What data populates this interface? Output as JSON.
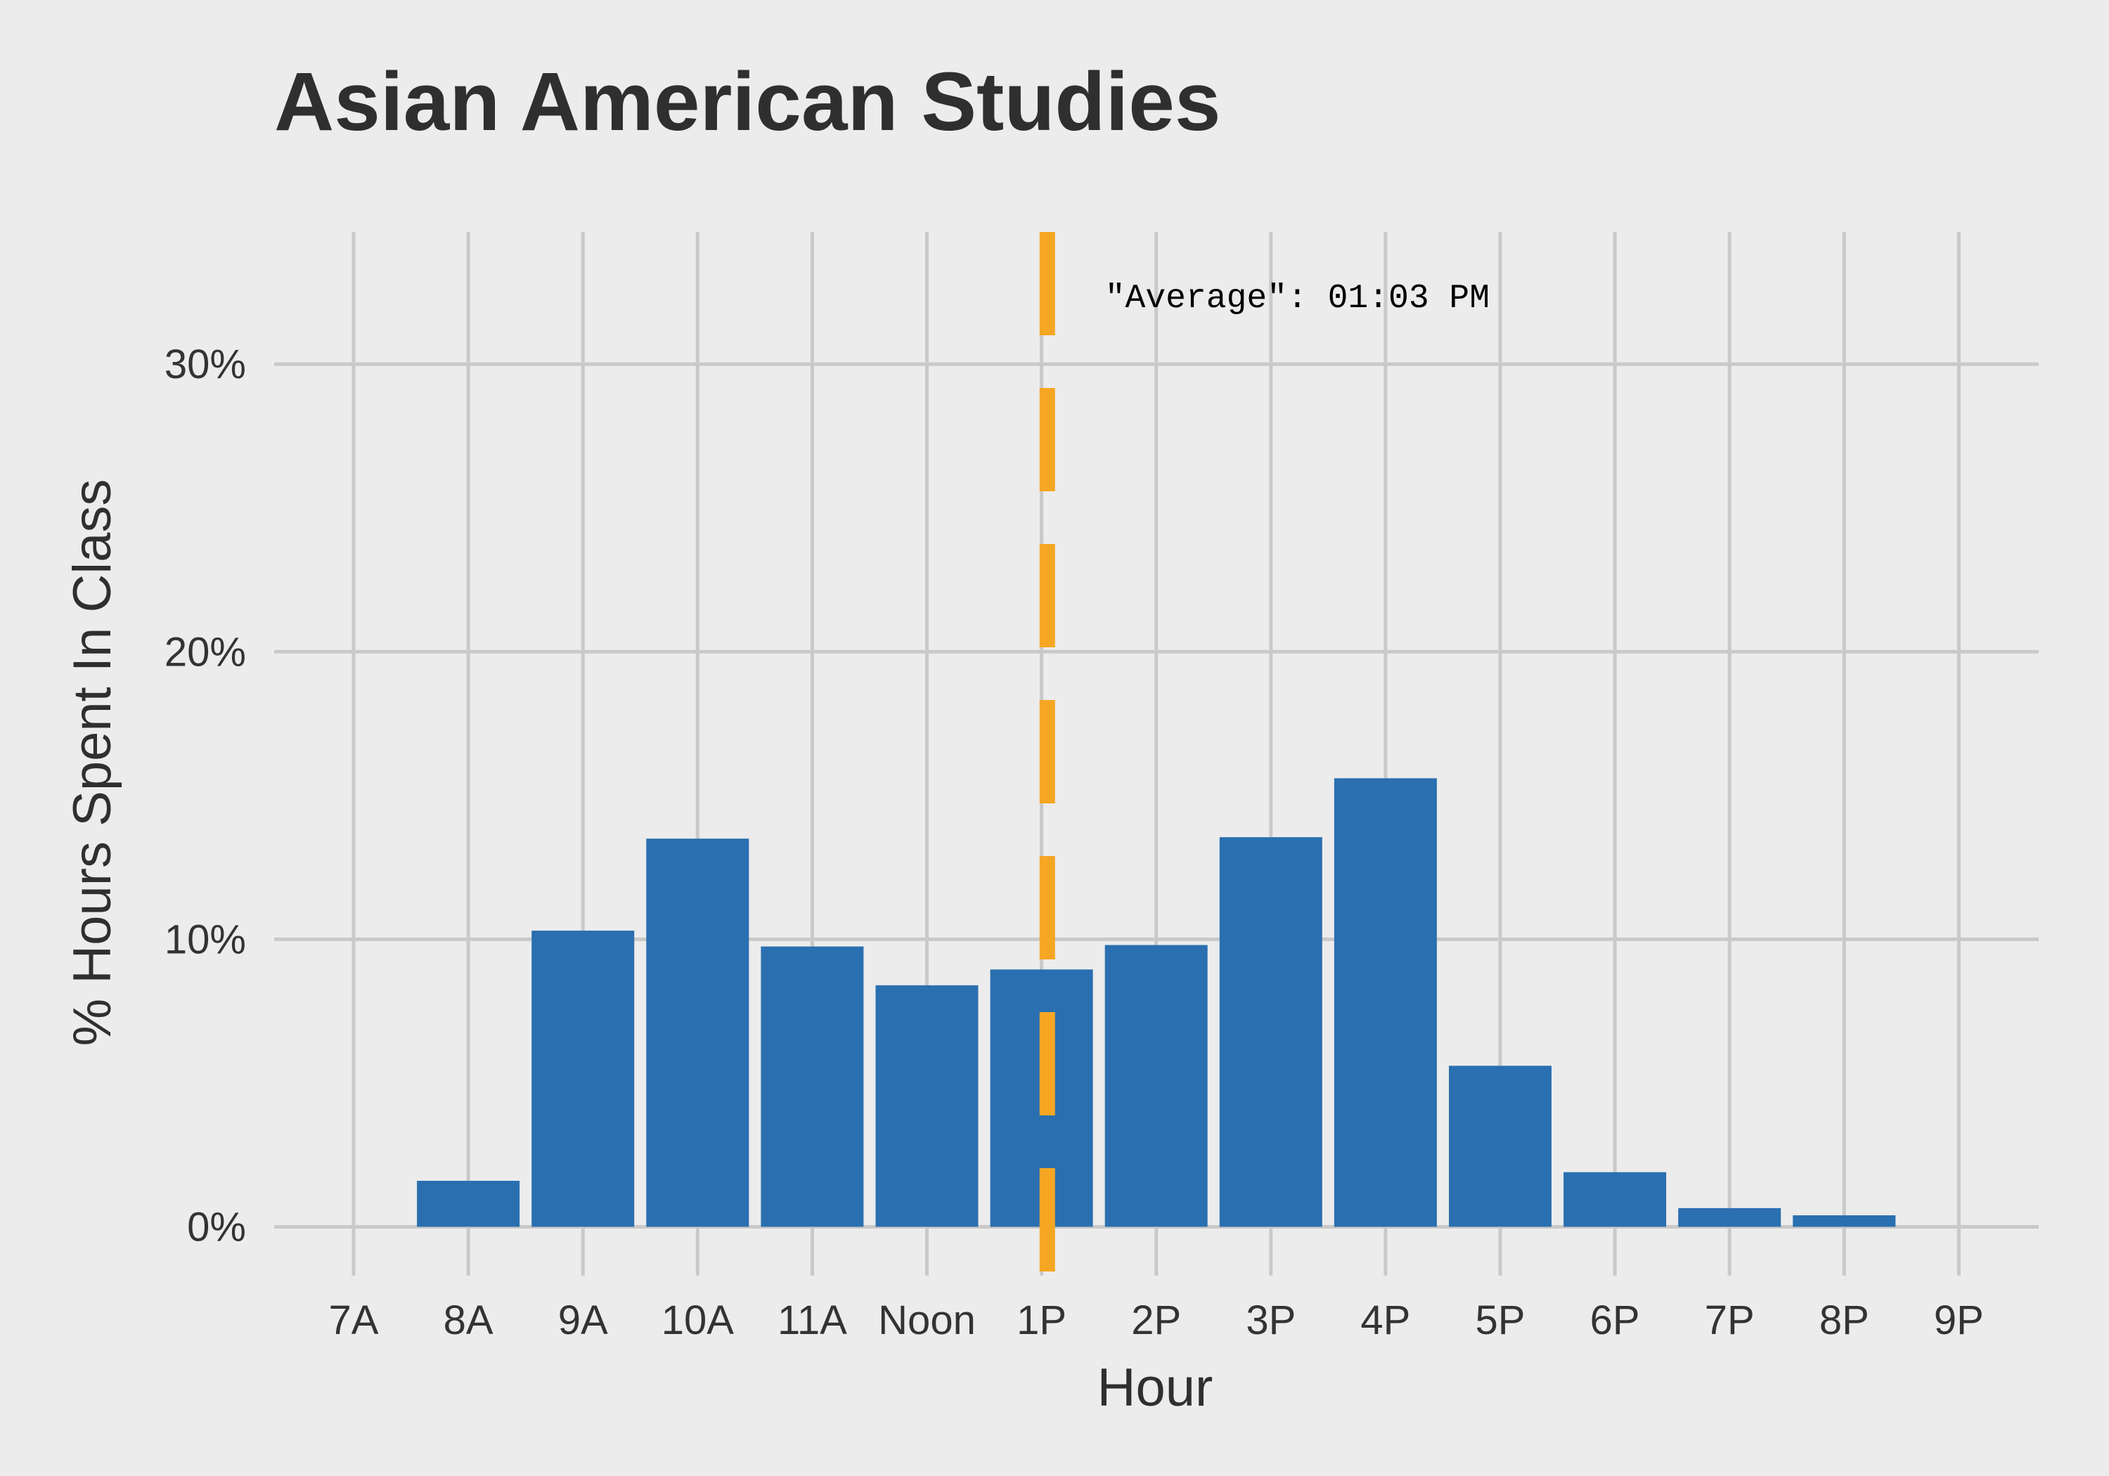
{
  "chart_data": {
    "type": "bar",
    "title": "Asian American Studies",
    "xlabel": "Hour",
    "ylabel": "% Hours Spent In Class",
    "categories": [
      "7A",
      "8A",
      "9A",
      "10A",
      "11A",
      "Noon",
      "1P",
      "2P",
      "3P",
      "4P",
      "5P",
      "6P",
      "7P",
      "8P",
      "9P"
    ],
    "values": [
      0,
      1.6,
      10.3,
      13.5,
      9.75,
      8.4,
      8.95,
      9.8,
      13.55,
      15.6,
      5.6,
      1.9,
      0.65,
      0.4,
      0
    ],
    "ylim": [
      -1.7,
      34.6
    ],
    "yticks": [
      0,
      10,
      20,
      30
    ],
    "ytick_labels": [
      "0%",
      "10%",
      "20%",
      "30%"
    ],
    "average": {
      "x": 13.05,
      "label": "\"Average\": 01:03 PM"
    },
    "grid": true,
    "colors": {
      "bar": "#2a6fb0",
      "average_line": "#f5a623",
      "background": "#ececec",
      "grid": "#c9c9c9"
    }
  }
}
